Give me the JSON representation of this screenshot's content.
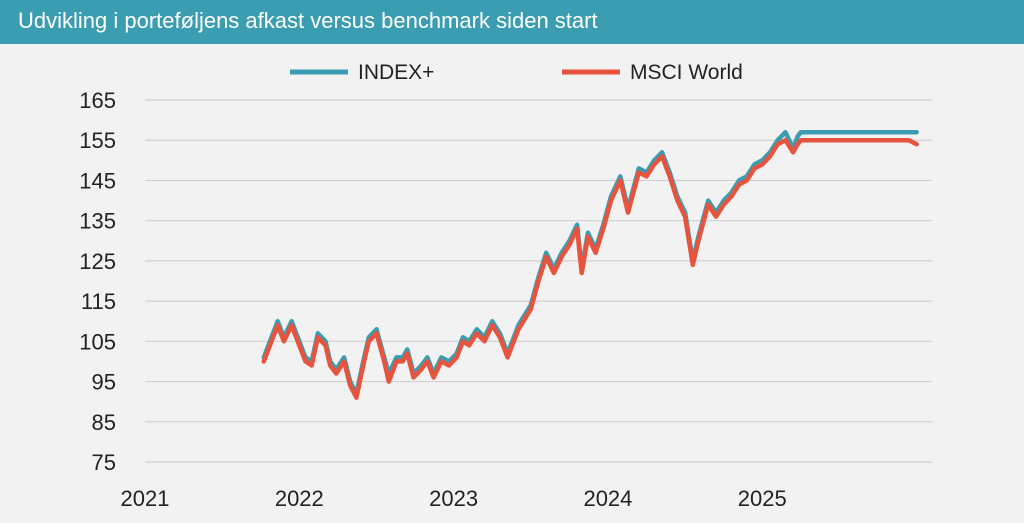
{
  "header": {
    "title": "Udvikling i porteføljens afkast versus benchmark siden start"
  },
  "colors": {
    "header_bg": "#3b9db1",
    "plot_bg": "#f2f2f2",
    "grid": "#d0d0d0"
  },
  "chart_data": {
    "type": "line",
    "title": "Udvikling i porteføljens afkast versus benchmark siden start",
    "xlabel": "",
    "ylabel": "",
    "xlim": [
      2021,
      2026.1
    ],
    "ylim": [
      75,
      165
    ],
    "yticks": [
      "75",
      "85",
      "95",
      "105",
      "115",
      "125",
      "135",
      "145",
      "155",
      "165"
    ],
    "xticks": [
      "2021",
      "2022",
      "2023",
      "2024",
      "2025"
    ],
    "grid": "horizontal",
    "legend_position": "top",
    "series": [
      {
        "name": "INDEX+",
        "color": "#3b9db1",
        "x": [
          2021.77,
          2021.82,
          2021.86,
          2021.9,
          2021.95,
          2022.0,
          2022.04,
          2022.08,
          2022.12,
          2022.17,
          2022.2,
          2022.24,
          2022.29,
          2022.33,
          2022.37,
          2022.42,
          2022.45,
          2022.5,
          2022.55,
          2022.58,
          2022.63,
          2022.67,
          2022.7,
          2022.74,
          2022.79,
          2022.83,
          2022.87,
          2022.92,
          2022.97,
          2023.02,
          2023.06,
          2023.1,
          2023.15,
          2023.2,
          2023.25,
          2023.3,
          2023.35,
          2023.42,
          2023.5,
          2023.55,
          2023.6,
          2023.65,
          2023.7,
          2023.75,
          2023.8,
          2023.83,
          2023.87,
          2023.92,
          2023.97,
          2024.02,
          2024.08,
          2024.13,
          2024.2,
          2024.25,
          2024.3,
          2024.35,
          2024.4,
          2024.45,
          2024.5,
          2024.55,
          2024.58,
          2024.6,
          2024.65,
          2024.7,
          2024.75,
          2024.8,
          2024.85,
          2024.9,
          2024.95,
          2025.0,
          2025.05,
          2025.1,
          2025.15,
          2025.2,
          2025.23,
          2025.25,
          2025.27,
          2025.29,
          2025.31,
          2025.35,
          2025.4,
          2025.45,
          2025.5,
          2025.55,
          2025.6,
          2025.65,
          2025.7,
          2025.75,
          2025.8,
          2025.85,
          2025.9,
          2025.95,
          2026.0
        ],
        "y": [
          101,
          106,
          110,
          106,
          110,
          105,
          101,
          100,
          107,
          105,
          100,
          98,
          101,
          95,
          92,
          101,
          106,
          108,
          101,
          97,
          101,
          101,
          103,
          97,
          99,
          101,
          97,
          101,
          100,
          102,
          106,
          105,
          108,
          106,
          110,
          107,
          102,
          109,
          114,
          121,
          127,
          123,
          127,
          130,
          134,
          123,
          132,
          128,
          134,
          141,
          146,
          138,
          148,
          147,
          150,
          152,
          147,
          141,
          137,
          125,
          130,
          133,
          140,
          137,
          140,
          142,
          145,
          146,
          149,
          150,
          152,
          155,
          157,
          153,
          156,
          157,
          157,
          157,
          157,
          157,
          157,
          157,
          157,
          157,
          157,
          157,
          157,
          157,
          157,
          157,
          157,
          157,
          157
        ]
      },
      {
        "name": "MSCI World",
        "color": "#e8533e",
        "x": [
          2021.77,
          2021.82,
          2021.86,
          2021.9,
          2021.95,
          2022.0,
          2022.04,
          2022.08,
          2022.12,
          2022.17,
          2022.2,
          2022.24,
          2022.29,
          2022.33,
          2022.37,
          2022.42,
          2022.45,
          2022.5,
          2022.55,
          2022.58,
          2022.63,
          2022.67,
          2022.7,
          2022.74,
          2022.79,
          2022.83,
          2022.87,
          2022.92,
          2022.97,
          2023.02,
          2023.06,
          2023.1,
          2023.15,
          2023.2,
          2023.25,
          2023.3,
          2023.35,
          2023.42,
          2023.5,
          2023.55,
          2023.6,
          2023.65,
          2023.7,
          2023.75,
          2023.8,
          2023.83,
          2023.87,
          2023.92,
          2023.97,
          2024.02,
          2024.08,
          2024.13,
          2024.2,
          2024.25,
          2024.3,
          2024.35,
          2024.4,
          2024.45,
          2024.5,
          2024.55,
          2024.58,
          2024.6,
          2024.65,
          2024.7,
          2024.75,
          2024.8,
          2024.85,
          2024.9,
          2024.95,
          2025.0,
          2025.05,
          2025.1,
          2025.15,
          2025.2,
          2025.23,
          2025.25,
          2025.27,
          2025.29,
          2025.31,
          2025.35,
          2025.4,
          2025.45,
          2025.5,
          2025.55,
          2025.6,
          2025.65,
          2025.7,
          2025.75,
          2025.8,
          2025.85,
          2025.9,
          2025.95,
          2026.0
        ],
        "y": [
          100,
          105,
          109,
          105,
          109,
          104,
          100,
          99,
          106,
          104,
          99,
          97,
          100,
          94,
          91,
          100,
          105,
          107,
          100,
          95,
          100,
          100,
          102,
          96,
          98,
          100,
          96,
          100,
          99,
          101,
          105,
          104,
          107,
          105,
          109,
          106,
          101,
          108,
          113,
          120,
          126,
          122,
          126,
          129,
          133,
          122,
          131,
          127,
          133,
          140,
          145,
          137,
          147,
          146,
          149,
          151,
          146,
          140,
          136,
          124,
          129,
          132,
          139,
          136,
          139,
          141,
          144,
          145,
          148,
          149,
          151,
          154,
          155,
          152,
          154,
          155,
          155,
          155,
          155,
          155,
          155,
          155,
          155,
          155,
          155,
          155,
          155,
          155,
          155,
          155,
          155,
          155,
          154
        ]
      }
    ]
  }
}
